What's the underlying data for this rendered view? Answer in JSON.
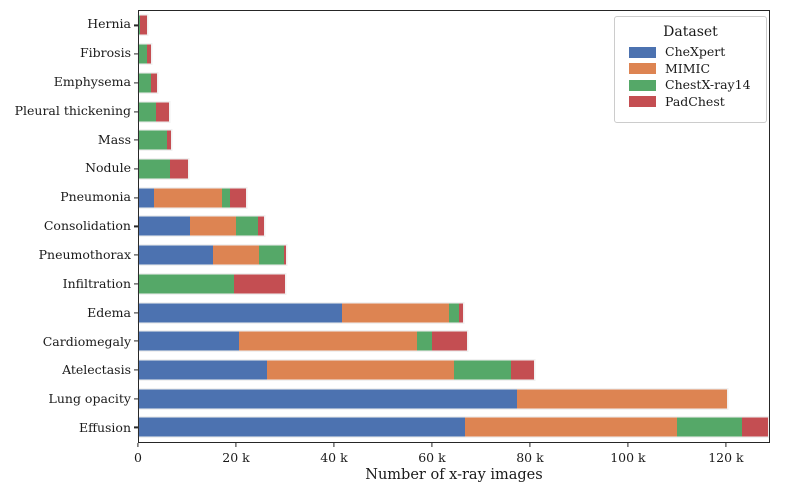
{
  "figure": {
    "background_color": "#ffffff",
    "text_color": "#1a1a1a",
    "spine_color": "#262626"
  },
  "chart_data": {
    "type": "bar",
    "orientation": "horizontal",
    "stacked": true,
    "title": "",
    "xlabel": "Number of x-ray images",
    "ylabel": "",
    "grid": false,
    "legend_title": "Dataset",
    "legend_position": "upper right",
    "xlim": [
      0,
      129000
    ],
    "xticks": {
      "values": [
        0,
        20000,
        40000,
        60000,
        80000,
        100000,
        120000
      ],
      "labels": [
        "0",
        "20 k",
        "40 k",
        "60 k",
        "80 k",
        "100 k",
        "120 k"
      ]
    },
    "categories_top_to_bottom": [
      "Hernia",
      "Fibrosis",
      "Emphysema",
      "Pleural thickening",
      "Mass",
      "Nodule",
      "Pneumonia",
      "Consolidation",
      "Pneumothorax",
      "Infiltration",
      "Edema",
      "Cardiomegaly",
      "Atelectasis",
      "Lung opacity",
      "Effusion"
    ],
    "series": [
      {
        "name": "CheXpert",
        "color": "#4C72B0",
        "values": [
          0,
          0,
          0,
          0,
          0,
          0,
          3100,
          10400,
          15100,
          0,
          41400,
          20400,
          26100,
          77200,
          66600
        ]
      },
      {
        "name": "MIMIC",
        "color": "#DD8452",
        "values": [
          0,
          0,
          0,
          0,
          0,
          0,
          13800,
          9400,
          9400,
          0,
          21800,
          36400,
          38300,
          42800,
          43200
        ]
      },
      {
        "name": "ChestX-ray14",
        "color": "#55A868",
        "values": [
          230,
          1690,
          2520,
          3400,
          5780,
          6330,
          1600,
          4500,
          5200,
          19400,
          2200,
          3100,
          11500,
          0,
          13200
        ]
      },
      {
        "name": "PadChest",
        "color": "#C44E52",
        "values": [
          1350,
          710,
          1200,
          2800,
          750,
          3640,
          3300,
          1200,
          400,
          10500,
          800,
          7100,
          4700,
          0,
          5300
        ]
      }
    ]
  }
}
